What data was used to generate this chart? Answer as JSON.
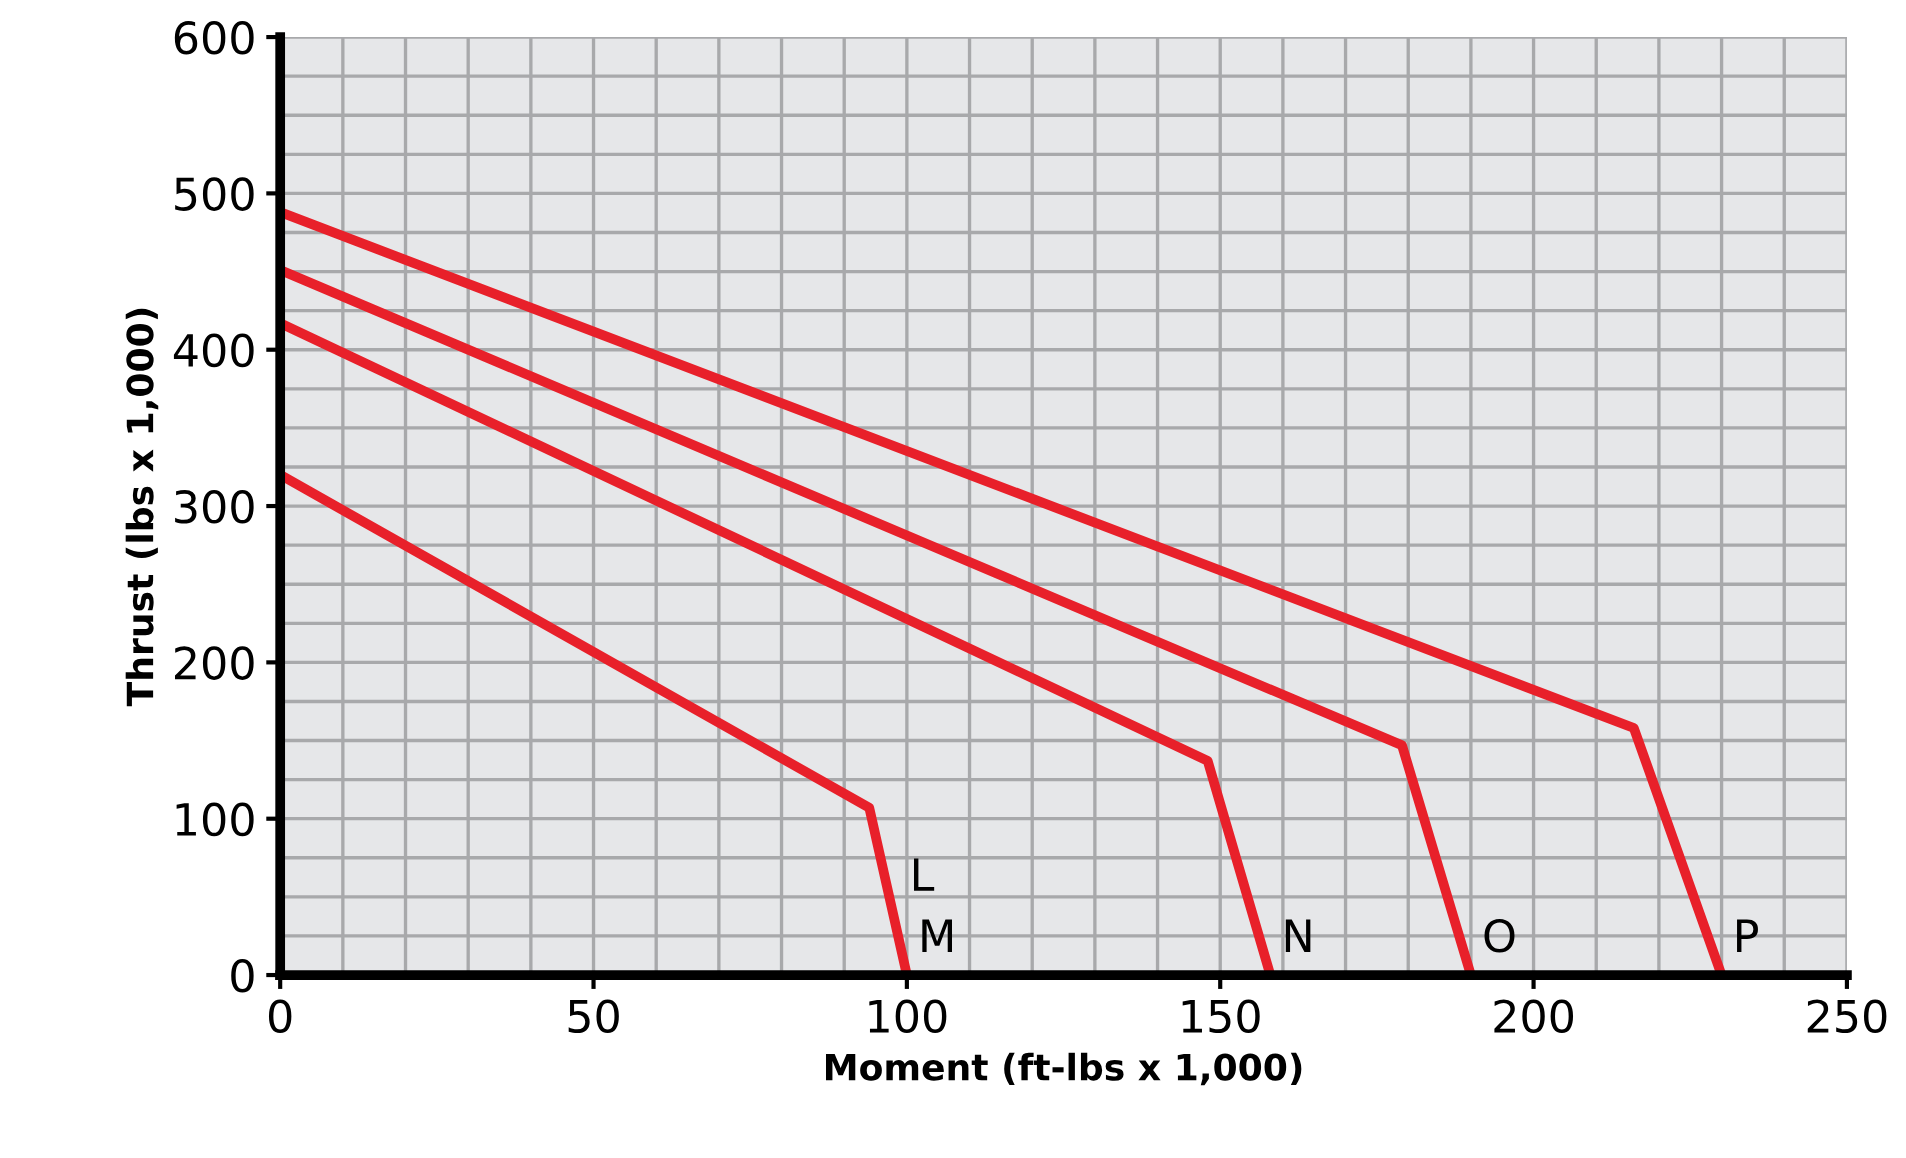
{
  "chart_data": {
    "type": "line",
    "xlabel": "Moment (ft-lbs x 1,000)",
    "ylabel": "Thrust (lbs x 1,000)",
    "series": [
      {
        "color": "#e8202a",
        "x": [
          0,
          94,
          100
        ],
        "values": [
          320,
          107,
          0
        ]
      },
      {
        "color": "#e8202a",
        "x": [
          0,
          148,
          158
        ],
        "values": [
          417,
          137,
          0
        ]
      },
      {
        "color": "#e8202a",
        "x": [
          0,
          179,
          190
        ],
        "values": [
          451,
          147,
          0
        ]
      },
      {
        "color": "#e8202a",
        "x": [
          0,
          216,
          230
        ],
        "values": [
          488,
          158,
          0
        ]
      }
    ],
    "xlim": [
      0,
      250
    ],
    "ylim": [
      0,
      600
    ],
    "xticks": [
      0,
      50,
      100,
      150,
      200,
      250
    ],
    "yticks": [
      0,
      100,
      200,
      300,
      400,
      500,
      600
    ],
    "grid": true,
    "marker": "none",
    "line_style": "solid",
    "annotations": [
      {
        "text": "L",
        "x": 100,
        "y": 0
      },
      {
        "text": "M",
        "x": 100,
        "y": 0
      },
      {
        "text": "N",
        "x": 158,
        "y": 0
      },
      {
        "text": "O",
        "x": 190,
        "y": 0
      },
      {
        "text": "P",
        "x": 230,
        "y": 0
      }
    ]
  }
}
